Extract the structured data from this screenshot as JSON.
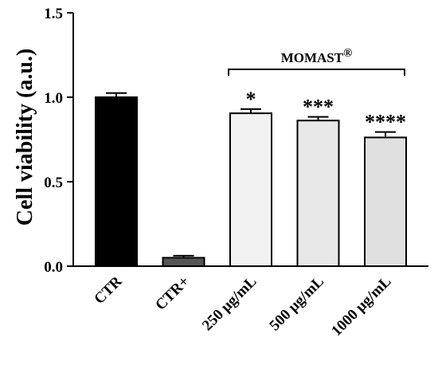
{
  "chart_data": {
    "type": "bar",
    "title": "",
    "xlabel": "",
    "ylabel": "Cell viability (a.u.)",
    "ylim": [
      0,
      1.5
    ],
    "yticks": [
      "0.0",
      "0.5",
      "1.0",
      "1.5"
    ],
    "categories": [
      "CTR",
      "CTR+",
      "250 μg/mL",
      "500 μg/mL",
      "1000 μg/mL"
    ],
    "values": [
      1.0,
      0.05,
      0.905,
      0.862,
      0.762
    ],
    "errors": [
      0.025,
      0.012,
      0.025,
      0.022,
      0.032
    ],
    "colors": [
      "#000000",
      "#555555",
      "#f2f2f2",
      "#e8e8e8",
      "#e0e0e0"
    ],
    "significance": [
      "",
      "",
      "*",
      "***",
      "****"
    ],
    "group": {
      "label": "MOMAST",
      "mark": "®",
      "from": 2,
      "to": 4
    }
  }
}
